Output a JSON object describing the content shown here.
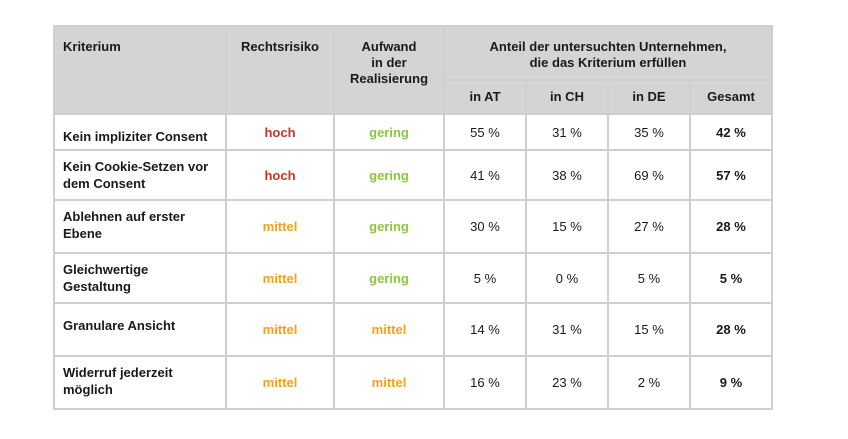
{
  "colors": {
    "hoch": "#c0392b",
    "mittel": "#f0a31b",
    "gering": "#8cc63f",
    "header_bg": "#d4d4d4",
    "border": "#cfcfcf"
  },
  "headers": {
    "kriterium": "Kriterium",
    "rechtsrisiko": "Rechtsrisiko",
    "aufwand_line1": "Aufwand",
    "aufwand_line2": "in der",
    "aufwand_line3": "Realisierung",
    "anteil_line1": "Anteil der untersuchten Unternehmen,",
    "anteil_line2": "die das Kriterium erfüllen",
    "sub": [
      "in AT",
      "in CH",
      "in DE",
      "Gesamt"
    ]
  },
  "rows": [
    {
      "kriterium": [
        "Kein impliziter Consent"
      ],
      "rechtsrisiko": "hoch",
      "rechtsrisiko_level": "hoch",
      "aufwand": "gering",
      "aufwand_level": "gering",
      "at": "55 %",
      "ch": "31 %",
      "de": "35 %",
      "gesamt": "42 %"
    },
    {
      "kriterium": [
        "Kein Cookie-Setzen vor",
        "dem Consent"
      ],
      "rechtsrisiko": "hoch",
      "rechtsrisiko_level": "hoch",
      "aufwand": "gering",
      "aufwand_level": "gering",
      "at": "41 %",
      "ch": "38 %",
      "de": "69 %",
      "gesamt": "57 %"
    },
    {
      "kriterium": [
        "Ablehnen auf erster",
        "Ebene"
      ],
      "rechtsrisiko": "mittel",
      "rechtsrisiko_level": "mittel",
      "aufwand": "gering",
      "aufwand_level": "gering",
      "at": "30 %",
      "ch": "15 %",
      "de": "27 %",
      "gesamt": "28 %"
    },
    {
      "kriterium": [
        "Gleichwertige",
        "Gestaltung"
      ],
      "rechtsrisiko": "mittel",
      "rechtsrisiko_level": "mittel",
      "aufwand": "gering",
      "aufwand_level": "gering",
      "at": "5 %",
      "ch": "0 %",
      "de": "5 %",
      "gesamt": "5 %"
    },
    {
      "kriterium": [
        "Granulare Ansicht"
      ],
      "rechtsrisiko": "mittel",
      "rechtsrisiko_level": "mittel",
      "aufwand": "mittel",
      "aufwand_level": "mittel",
      "at": "14 %",
      "ch": "31 %",
      "de": "15 %",
      "gesamt": "28 %"
    },
    {
      "kriterium": [
        "Widerruf jederzeit",
        "möglich"
      ],
      "rechtsrisiko": "mittel",
      "rechtsrisiko_level": "mittel",
      "aufwand": "mittel",
      "aufwand_level": "mittel",
      "at": "16 %",
      "ch": "23 %",
      "de": "2 %",
      "gesamt": "9 %"
    }
  ]
}
